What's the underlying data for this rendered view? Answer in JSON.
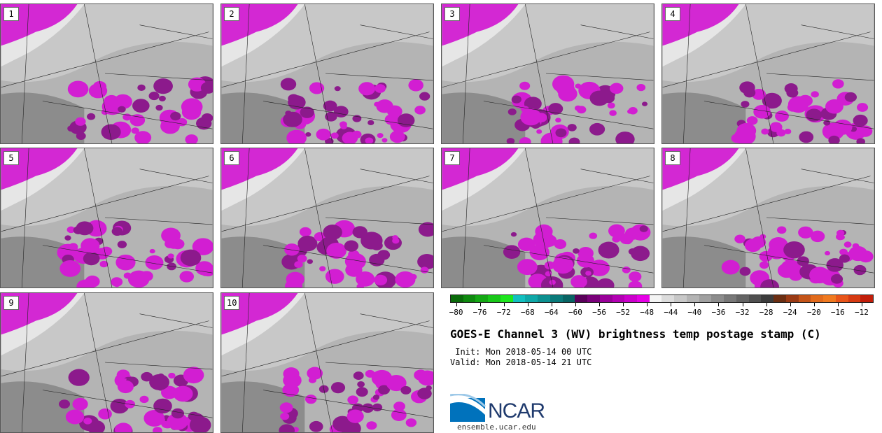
{
  "stamps": [
    {
      "label": "1"
    },
    {
      "label": "2"
    },
    {
      "label": "3"
    },
    {
      "label": "4"
    },
    {
      "label": "5"
    },
    {
      "label": "6"
    },
    {
      "label": "7"
    },
    {
      "label": "8"
    },
    {
      "label": "9"
    },
    {
      "label": "10"
    }
  ],
  "colorbar": {
    "colors": [
      "#0a6b0a",
      "#0f8a0f",
      "#14a814",
      "#18c718",
      "#1ee61e",
      "#12c0c0",
      "#0fa8a8",
      "#0c9090",
      "#0a7a7a",
      "#086464",
      "#5a005a",
      "#7a007a",
      "#990099",
      "#b300b3",
      "#cc00cc",
      "#e600e6",
      "#f4f4f4",
      "#dcdcdc",
      "#c8c8c8",
      "#b4b4b4",
      "#a0a0a0",
      "#8c8c8c",
      "#787878",
      "#646464",
      "#505050",
      "#3c3c3c",
      "#6b2e12",
      "#9a3a14",
      "#c45418",
      "#e26b1c",
      "#f07a20",
      "#e8551a",
      "#d63a12",
      "#c21e0a"
    ],
    "ticks": [
      "−80",
      "−76",
      "−72",
      "−68",
      "−64",
      "−60",
      "−56",
      "−52",
      "−48",
      "−44",
      "−40",
      "−36",
      "−32",
      "−28",
      "−24",
      "−20",
      "−16",
      "−12"
    ],
    "range": [
      -81,
      -10
    ]
  },
  "title": "GOES-E Channel 3 (WV) brightness temp postage stamp (C)",
  "init": " Init: Mon 2018-05-14 00 UTC",
  "valid": "Valid: Mon 2018-05-14 21 UTC",
  "logo": {
    "text": "NCAR",
    "url": "ensemble.ucar.edu",
    "brand_color": "#1f3a6d",
    "accent_color": "#0072bc"
  },
  "map_colors": {
    "magenta": "#d21ed2",
    "dark_magenta": "#8c1a8c",
    "light_gray": "#e6e6e6",
    "mid_gray": "#b4b4b4",
    "dark_gray": "#808080",
    "border": "#222222"
  }
}
